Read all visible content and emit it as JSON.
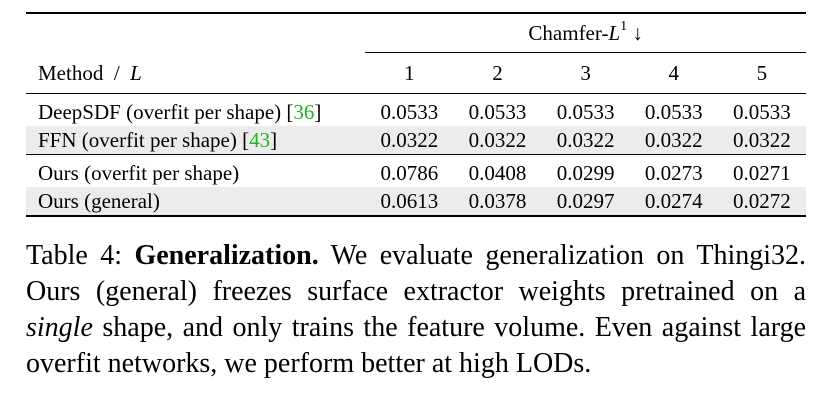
{
  "table": {
    "header_group": "Chamfer-",
    "header_group_var": "L",
    "header_group_sup": "1",
    "header_group_arrow": "↓",
    "method_label": "Method",
    "method_sep": "/",
    "method_var": "L",
    "columns": [
      "1",
      "2",
      "3",
      "4",
      "5"
    ],
    "rows": [
      {
        "method": "DeepSDF (overfit per shape)",
        "cite": "36",
        "values": [
          "0.0533",
          "0.0533",
          "0.0533",
          "0.0533",
          "0.0533"
        ]
      },
      {
        "method": "FFN (overfit per shape)",
        "cite": "43",
        "values": [
          "0.0322",
          "0.0322",
          "0.0322",
          "0.0322",
          "0.0322"
        ]
      },
      {
        "method": "Ours (overfit per shape)",
        "cite": "",
        "values": [
          "0.0786",
          "0.0408",
          "0.0299",
          "0.0273",
          "0.0271"
        ]
      },
      {
        "method": "Ours (general)",
        "cite": "",
        "values": [
          "0.0613",
          "0.0378",
          "0.0297",
          "0.0274",
          "0.0272"
        ]
      }
    ]
  },
  "caption": {
    "label": "Table 4:",
    "title": "Generalization.",
    "text1": "We evaluate generalization on Thingi32. Ours (general) freezes surface extractor weights pretrained on a",
    "italic": "single",
    "text2": "shape, and only trains the feature volume.  Even against large overfit networks, we perform better at high LODs."
  }
}
